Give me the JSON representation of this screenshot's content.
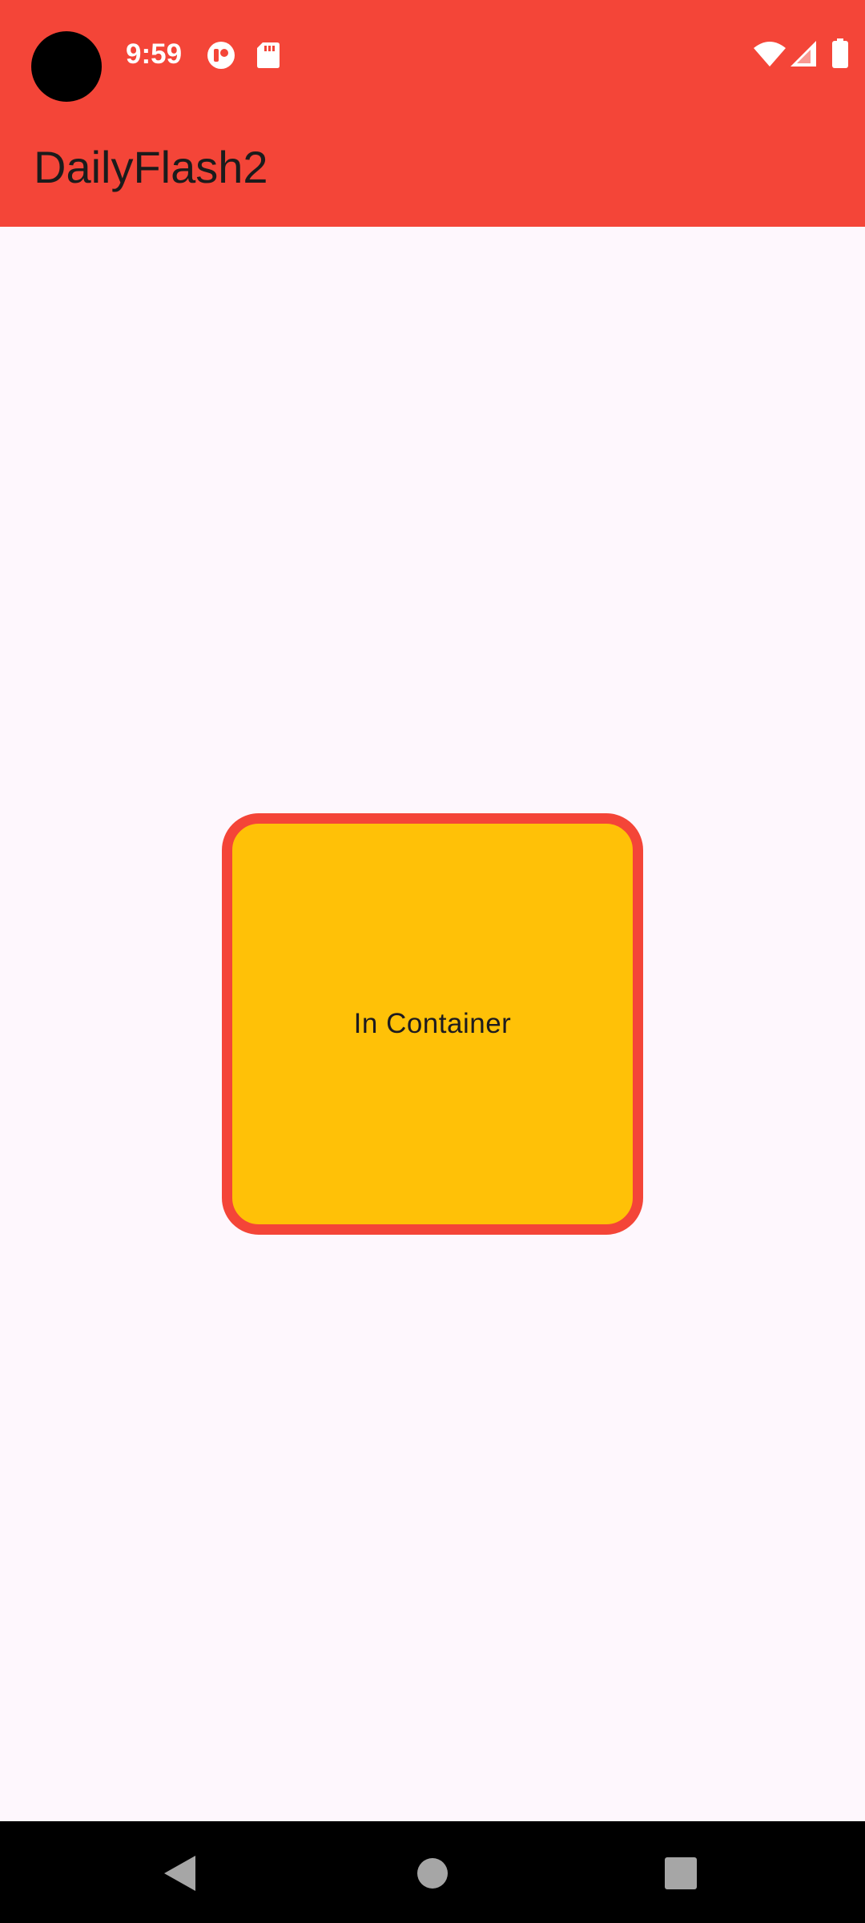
{
  "status_bar": {
    "time": "9:59",
    "icons": [
      "camera-cutout-icon",
      "notification-app-icon",
      "sd-card-icon",
      "wifi-icon",
      "cellular-signal-icon",
      "battery-icon"
    ],
    "background_color": "#f44538"
  },
  "app_bar": {
    "title": "DailyFlash2",
    "background_color": "#f44538"
  },
  "main": {
    "container": {
      "label": "In Container",
      "fill_color": "#ffc107",
      "border_color": "#f44538"
    },
    "background_color": "#fef7fd"
  },
  "nav_bar": {
    "buttons": [
      "back-icon",
      "home-icon",
      "recents-icon"
    ]
  }
}
